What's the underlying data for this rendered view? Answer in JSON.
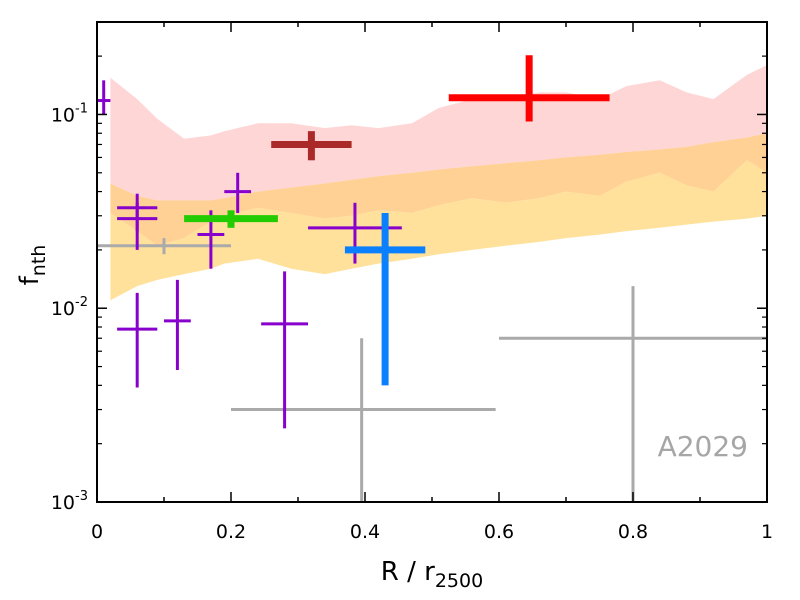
{
  "chart_data": {
    "type": "scatter",
    "xlabel": "R / r",
    "xlabel_sub": "2500",
    "ylabel": "f",
    "ylabel_sub": "nth",
    "xscale": "linear",
    "yscale": "log",
    "xlim": [
      0,
      1
    ],
    "ylim": [
      0.001,
      0.3
    ],
    "x_ticks": [
      {
        "value": 0,
        "label": "0"
      },
      {
        "value": 0.2,
        "label": "0.2"
      },
      {
        "value": 0.4,
        "label": "0.4"
      },
      {
        "value": 0.6,
        "label": "0.6"
      },
      {
        "value": 0.8,
        "label": "0.8"
      },
      {
        "value": 1,
        "label": "1"
      }
    ],
    "y_ticks": [
      {
        "value": 0.001,
        "base": "10",
        "exp": "-3"
      },
      {
        "value": 0.01,
        "base": "10",
        "exp": "-2"
      },
      {
        "value": 0.1,
        "base": "10",
        "exp": "-1"
      }
    ],
    "annotation": {
      "text": "A2029",
      "color": "#a6a6a6",
      "position": "bottom-right"
    },
    "bands": [
      {
        "name": "pink band",
        "color": "#ffd6d6",
        "x": [
          0.02,
          0.06,
          0.09,
          0.13,
          0.17,
          0.19,
          0.24,
          0.29,
          0.34,
          0.38,
          0.42,
          0.47,
          0.51,
          0.56,
          0.61,
          0.66,
          0.7,
          0.75,
          0.79,
          0.84,
          0.88,
          0.92,
          0.97,
          1.0
        ],
        "upper": [
          0.155,
          0.12,
          0.095,
          0.075,
          0.078,
          0.082,
          0.09,
          0.09,
          0.085,
          0.088,
          0.085,
          0.09,
          0.108,
          0.12,
          0.12,
          0.13,
          0.13,
          0.12,
          0.14,
          0.15,
          0.13,
          0.12,
          0.16,
          0.18
        ],
        "lower": [
          0.044,
          0.038,
          0.036,
          0.036,
          0.036,
          0.037,
          0.04,
          0.042,
          0.044,
          0.046,
          0.048,
          0.05,
          0.052,
          0.054,
          0.056,
          0.058,
          0.06,
          0.062,
          0.064,
          0.066,
          0.068,
          0.072,
          0.076,
          0.08
        ]
      },
      {
        "name": "orange band",
        "color": "#ffc67a",
        "opacity": 0.8,
        "x": [
          0.02,
          0.06,
          0.09,
          0.13,
          0.17,
          0.19,
          0.24,
          0.29,
          0.34,
          0.38,
          0.42,
          0.47,
          0.51,
          0.56,
          0.61,
          0.66,
          0.7,
          0.75,
          0.79,
          0.84,
          0.88,
          0.92,
          0.97,
          1.0
        ],
        "upper": [
          0.044,
          0.038,
          0.036,
          0.036,
          0.036,
          0.037,
          0.04,
          0.042,
          0.044,
          0.046,
          0.048,
          0.05,
          0.052,
          0.054,
          0.056,
          0.058,
          0.06,
          0.062,
          0.064,
          0.066,
          0.068,
          0.072,
          0.076,
          0.08
        ],
        "lower": [
          0.031,
          0.025,
          0.021,
          0.023,
          0.028,
          0.03,
          0.033,
          0.031,
          0.029,
          0.03,
          0.032,
          0.031,
          0.034,
          0.037,
          0.035,
          0.037,
          0.04,
          0.038,
          0.045,
          0.05,
          0.043,
          0.04,
          0.058,
          0.05
        ]
      },
      {
        "name": "light yellow band",
        "color": "#ffdc8a",
        "opacity": 0.85,
        "x": [
          0.02,
          0.06,
          0.09,
          0.13,
          0.17,
          0.19,
          0.24,
          0.29,
          0.34,
          0.38,
          0.42,
          0.47,
          0.51,
          0.56,
          0.61,
          0.66,
          0.7,
          0.75,
          0.79,
          0.84,
          0.88,
          0.92,
          0.97,
          1.0
        ],
        "upper": [
          0.031,
          0.025,
          0.021,
          0.023,
          0.028,
          0.03,
          0.033,
          0.031,
          0.029,
          0.03,
          0.032,
          0.031,
          0.034,
          0.037,
          0.035,
          0.037,
          0.04,
          0.038,
          0.045,
          0.05,
          0.043,
          0.04,
          0.058,
          0.05
        ],
        "lower": [
          0.011,
          0.013,
          0.014,
          0.015,
          0.016,
          0.017,
          0.018,
          0.016,
          0.015,
          0.016,
          0.017,
          0.018,
          0.019,
          0.02,
          0.021,
          0.022,
          0.023,
          0.024,
          0.025,
          0.026,
          0.027,
          0.028,
          0.029,
          0.03
        ]
      }
    ],
    "series": [
      {
        "name": "gray points",
        "color": "#aaaaaa",
        "linewidth": 3,
        "points": [
          {
            "x": 0.1,
            "y": 0.021,
            "xerr": [
              0.1,
              0.1
            ],
            "yerr": [
              0.002,
              0.002
            ]
          },
          {
            "x": 0.395,
            "y": 0.003,
            "xerr": [
              0.195,
              0.2
            ],
            "yerr": [
              0.002,
              0.004
            ]
          },
          {
            "x": 0.8,
            "y": 0.007,
            "xerr": [
              0.2,
              0.2
            ],
            "yerr": [
              0.006,
              0.006
            ]
          }
        ]
      },
      {
        "name": "purple points",
        "color": "#8800cc",
        "linewidth": 3,
        "points": [
          {
            "x": 0.01,
            "y": 0.118,
            "xerr": [
              0.01,
              0.01
            ],
            "yerr": [
              0.018,
              0.032
            ]
          },
          {
            "x": 0.06,
            "y": 0.033,
            "xerr": [
              0.03,
              0.03
            ],
            "yerr": [
              0.008,
              0.006
            ]
          },
          {
            "x": 0.06,
            "y": 0.029,
            "xerr": [
              0.03,
              0.03
            ],
            "yerr": [
              0.009,
              0.006
            ]
          },
          {
            "x": 0.06,
            "y": 0.0078,
            "xerr": [
              0.03,
              0.03
            ],
            "yerr": [
              0.0039,
              0.0042
            ]
          },
          {
            "x": 0.12,
            "y": 0.0086,
            "xerr": [
              0.02,
              0.02
            ],
            "yerr": [
              0.0038,
              0.0054
            ]
          },
          {
            "x": 0.17,
            "y": 0.024,
            "xerr": [
              0.02,
              0.02
            ],
            "yerr": [
              0.008,
              0.008
            ]
          },
          {
            "x": 0.21,
            "y": 0.04,
            "xerr": [
              0.02,
              0.02
            ],
            "yerr": [
              0.009,
              0.01
            ]
          },
          {
            "x": 0.28,
            "y": 0.0083,
            "xerr": [
              0.035,
              0.035
            ],
            "yerr": [
              0.0059,
              0.0072
            ]
          },
          {
            "x": 0.385,
            "y": 0.026,
            "xerr": [
              0.07,
              0.07
            ],
            "yerr": [
              0.009,
              0.009
            ]
          }
        ]
      },
      {
        "name": "green point",
        "color": "#22cc00",
        "linewidth": 7,
        "points": [
          {
            "x": 0.2,
            "y": 0.029,
            "xerr": [
              0.07,
              0.07
            ],
            "yerr": [
              0.003,
              0.003
            ]
          }
        ]
      },
      {
        "name": "brown point",
        "color": "#aa2a2a",
        "linewidth": 7,
        "points": [
          {
            "x": 0.32,
            "y": 0.07,
            "xerr": [
              0.06,
              0.06
            ],
            "yerr": [
              0.012,
              0.012
            ]
          }
        ]
      },
      {
        "name": "blue point",
        "color": "#0a80ff",
        "linewidth": 7,
        "points": [
          {
            "x": 0.43,
            "y": 0.02,
            "xerr": [
              0.06,
              0.06
            ],
            "yerr": [
              0.016,
              0.011
            ]
          }
        ]
      },
      {
        "name": "red point",
        "color": "#ff0000",
        "linewidth": 7,
        "points": [
          {
            "x": 0.645,
            "y": 0.122,
            "xerr": [
              0.12,
              0.12
            ],
            "yerr": [
              0.03,
              0.08
            ]
          }
        ]
      }
    ]
  }
}
